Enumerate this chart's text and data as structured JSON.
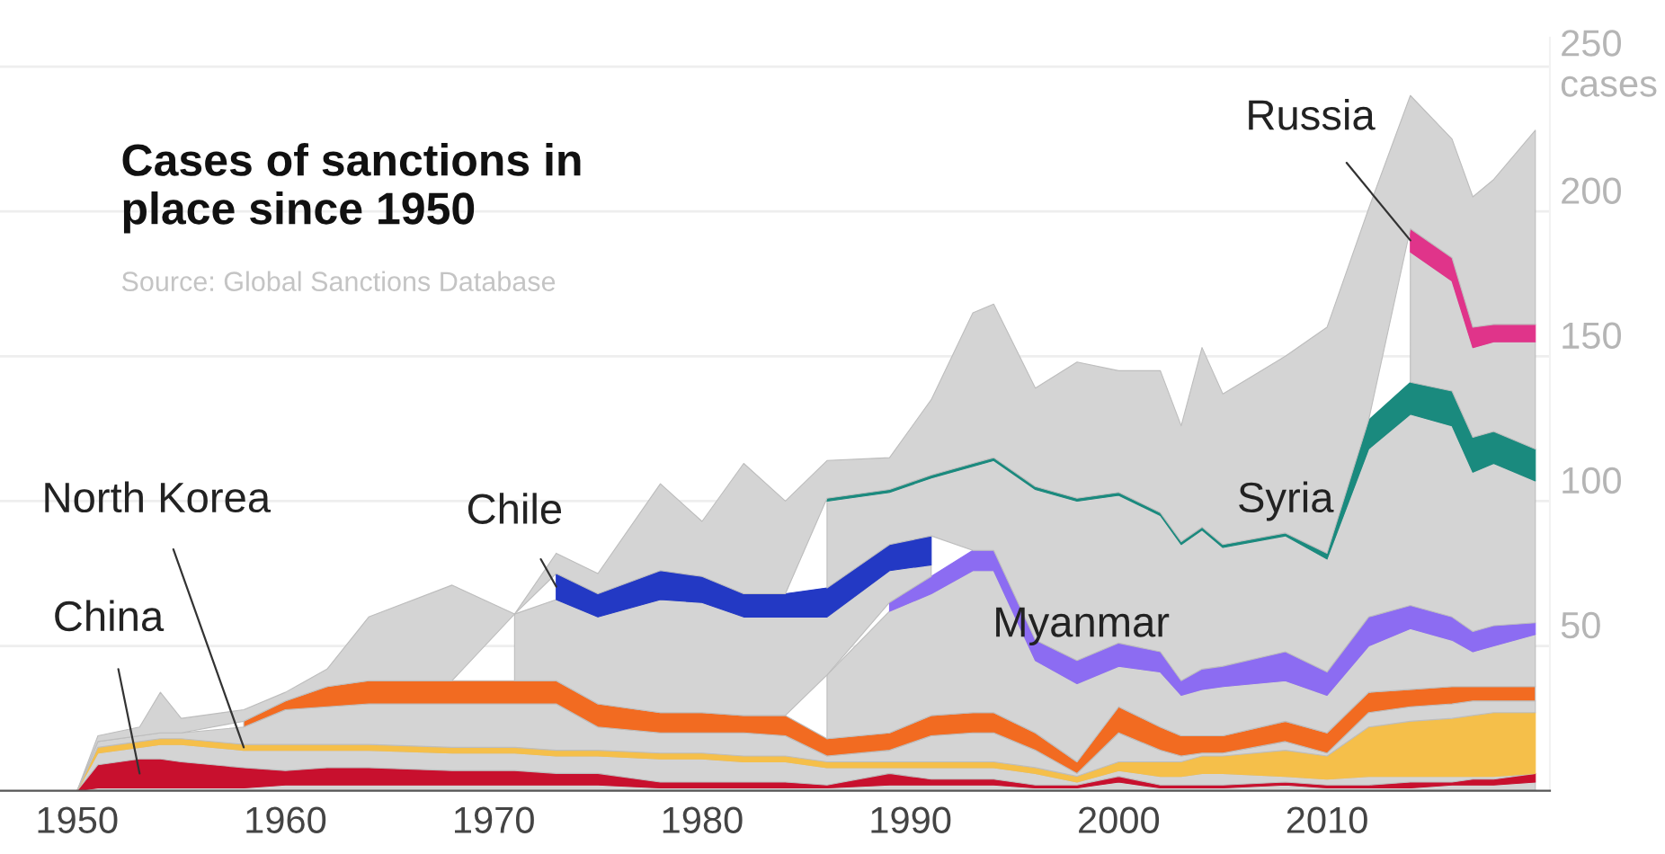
{
  "chart_data": {
    "type": "area",
    "stacked": true,
    "title": "Cases of sanctions in\nplace since 1950",
    "annotations": [
      "Source: Global Sanctions Database"
    ],
    "x": [
      1950,
      1951,
      1953,
      1954,
      1955,
      1958,
      1960,
      1962,
      1964,
      1968,
      1971,
      1973,
      1975,
      1978,
      1980,
      1982,
      1984,
      1986,
      1989,
      1991,
      1993,
      1994,
      1996,
      1998,
      2000,
      2002,
      2003,
      2004,
      2005,
      2008,
      2010,
      2012,
      2014,
      2016,
      2017,
      2018,
      2020
    ],
    "series": [
      {
        "color": "#d4d4d4",
        "values": [
          0,
          1,
          1,
          1,
          1,
          1,
          2,
          2,
          2,
          2,
          2,
          2,
          2,
          1,
          1,
          1,
          1,
          1,
          2,
          2,
          2,
          2,
          1,
          1,
          3,
          1,
          1,
          1,
          1,
          2,
          1,
          1,
          1,
          2,
          2,
          2,
          3
        ]
      },
      {
        "name": "China",
        "color": "#c8102e",
        "values": [
          0,
          8,
          10,
          10,
          9,
          7,
          5,
          6,
          6,
          5,
          5,
          4,
          4,
          2,
          2,
          2,
          2,
          1,
          4,
          2,
          2,
          2,
          1,
          1,
          2,
          1,
          1,
          1,
          1,
          1,
          1,
          1,
          2,
          1,
          2,
          2,
          3
        ]
      },
      {
        "color": "#d4d4d4",
        "values": [
          0,
          4,
          4,
          5,
          6,
          6,
          7,
          6,
          6,
          6,
          6,
          6,
          6,
          8,
          8,
          7,
          7,
          6,
          2,
          4,
          4,
          4,
          4,
          1,
          2,
          3,
          3,
          4,
          4,
          2,
          2,
          3,
          2,
          2,
          1,
          1,
          0
        ]
      },
      {
        "name": "North Korea",
        "color": "#f5bf4a",
        "values": [
          0,
          2,
          2,
          2,
          2,
          2,
          2,
          2,
          2,
          2,
          2,
          2,
          2,
          2,
          2,
          2,
          2,
          2,
          2,
          2,
          2,
          2,
          2,
          2,
          3,
          5,
          5,
          6,
          6,
          9,
          8,
          17,
          19,
          20,
          21,
          22,
          21
        ]
      },
      {
        "color": "#d4d4d4",
        "values": [
          0,
          2,
          2,
          2,
          2,
          6,
          12,
          13,
          14,
          15,
          15,
          16,
          8,
          7,
          7,
          8,
          7,
          2,
          4,
          9,
          10,
          10,
          6,
          1,
          10,
          4,
          2,
          1,
          1,
          3,
          1,
          5,
          5,
          5,
          5,
          4,
          4
        ]
      },
      {
        "color": "#f26b21",
        "values": [
          null,
          null,
          null,
          null,
          null,
          2,
          3,
          7,
          8,
          8,
          8,
          8,
          8,
          7,
          7,
          6,
          7,
          6,
          6,
          7,
          7,
          7,
          6,
          4,
          9,
          8,
          7,
          6,
          6,
          7,
          7,
          7,
          6,
          6,
          5,
          5,
          5
        ]
      },
      {
        "color": "#d4d4d4",
        "values": [
          null,
          null,
          null,
          null,
          null,
          null,
          null,
          null,
          null,
          null,
          null,
          null,
          null,
          null,
          null,
          null,
          null,
          22,
          42,
          42,
          49,
          49,
          25,
          27,
          14,
          19,
          14,
          16,
          17,
          14,
          13,
          16,
          21,
          16,
          12,
          14,
          18
        ]
      },
      {
        "name": "Myanmar",
        "color": "#8c6cf2",
        "values": [
          null,
          null,
          null,
          null,
          null,
          null,
          null,
          null,
          null,
          null,
          null,
          null,
          null,
          null,
          null,
          null,
          null,
          null,
          3,
          6,
          7,
          7,
          7,
          8,
          8,
          7,
          5,
          7,
          7,
          10,
          8,
          10,
          8,
          8,
          7,
          7,
          4
        ]
      },
      {
        "color": "#d4d4d4",
        "values": [
          null,
          null,
          null,
          null,
          null,
          null,
          null,
          null,
          null,
          null,
          23,
          28,
          30,
          39,
          38,
          34,
          34,
          20,
          11,
          4,
          null,
          null,
          null,
          null,
          null,
          null,
          null,
          null,
          null,
          null,
          null,
          null,
          null,
          null,
          null,
          null,
          null
        ]
      },
      {
        "name": "Chile",
        "color": "#2339c4",
        "values": [
          null,
          null,
          null,
          null,
          null,
          null,
          null,
          null,
          null,
          null,
          null,
          9,
          8,
          10,
          9,
          8,
          8,
          10,
          9,
          10,
          null,
          null,
          null,
          null,
          null,
          null,
          null,
          null,
          null,
          null,
          null,
          null,
          null,
          null,
          null,
          null,
          null
        ]
      },
      {
        "color": "#d4d4d4",
        "values": [
          null,
          null,
          null,
          null,
          null,
          null,
          null,
          null,
          null,
          null,
          null,
          null,
          null,
          null,
          null,
          null,
          null,
          30,
          18,
          20,
          29,
          31,
          52,
          55,
          51,
          47,
          47,
          48,
          41,
          40,
          39,
          58,
          66,
          66,
          55,
          56,
          49
        ]
      },
      {
        "name": "Syria",
        "color": "#1a8a7e",
        "values": [
          null,
          null,
          null,
          null,
          null,
          null,
          null,
          null,
          null,
          null,
          null,
          null,
          null,
          null,
          null,
          null,
          null,
          1,
          1,
          1,
          1,
          1,
          1,
          1,
          1,
          1,
          1,
          1,
          1,
          1,
          2,
          10,
          11,
          12,
          12,
          11,
          11
        ]
      },
      {
        "color": "#d4d4d4",
        "values": [
          null,
          null,
          null,
          null,
          null,
          null,
          null,
          null,
          null,
          null,
          null,
          null,
          null,
          null,
          null,
          null,
          null,
          null,
          null,
          null,
          null,
          null,
          null,
          null,
          null,
          null,
          null,
          null,
          null,
          null,
          null,
          null,
          45,
          38,
          31,
          31,
          37
        ]
      },
      {
        "name": "Russia",
        "color": "#e0348a",
        "values": [
          null,
          null,
          null,
          null,
          null,
          null,
          null,
          null,
          null,
          null,
          null,
          null,
          null,
          null,
          null,
          null,
          null,
          null,
          null,
          null,
          null,
          null,
          null,
          null,
          null,
          null,
          null,
          null,
          null,
          null,
          null,
          null,
          8,
          8,
          7,
          6,
          6
        ]
      },
      {
        "color": "#d4d4d4",
        "values": [
          0,
          2,
          3,
          14,
          5,
          4,
          3,
          6,
          22,
          33,
          0,
          7,
          7,
          30,
          19,
          45,
          32,
          13,
          11,
          26,
          52,
          53,
          34,
          47,
          42,
          49,
          40,
          62,
          52,
          61,
          78,
          73,
          46,
          41,
          45,
          50,
          67
        ]
      }
    ],
    "xlim": [
      1946.3,
      2020.7
    ],
    "xticks": [
      1950,
      1960,
      1970,
      1980,
      1990,
      2000,
      2010
    ],
    "ylim": [
      0,
      260
    ],
    "yticks": [
      50,
      100,
      150,
      200,
      {
        "value": 250,
        "label": "250\ncases"
      }
    ],
    "grid": "y",
    "legend": false
  }
}
